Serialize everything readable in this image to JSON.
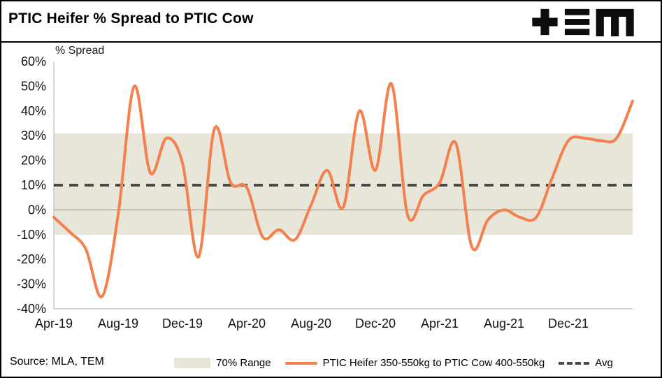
{
  "header": {
    "title": "PTIC Heifer % Spread to PTIC Cow",
    "logo": "TEM"
  },
  "chart_data": {
    "type": "line",
    "title": "PTIC Heifer % Spread to PTIC Cow",
    "ylabel": "% Spread",
    "ylim": [
      -40,
      60
    ],
    "ytick_step": 10,
    "ytick_suffix": "%",
    "legend_position": "bottom",
    "grid": "zero line only",
    "x_tick_labels": [
      "Apr-19",
      "Aug-19",
      "Dec-19",
      "Apr-20",
      "Aug-20",
      "Dec-20",
      "Apr-21",
      "Aug-21",
      "Dec-21"
    ],
    "x_tick_interval": 4,
    "band": {
      "name": "70% Range",
      "from": -10,
      "to": 31,
      "color": "#e8e6d9"
    },
    "avg": {
      "name": "Avg",
      "value": 10,
      "color": "#4a4a4a"
    },
    "series": [
      {
        "name": "PTIC Heifer 350-550kg to PTIC Cow 400-550kg",
        "color": "#f3804e",
        "x": [
          "Apr-19",
          "May-19",
          "Jun-19",
          "Jul-19",
          "Aug-19",
          "Sep-19",
          "Oct-19",
          "Nov-19",
          "Dec-19",
          "Jan-20",
          "Feb-20",
          "Mar-20",
          "Apr-20",
          "May-20",
          "Jun-20",
          "Jul-20",
          "Aug-20",
          "Sep-20",
          "Oct-20",
          "Nov-20",
          "Dec-20",
          "Jan-21",
          "Feb-21",
          "Mar-21",
          "Apr-21",
          "May-21",
          "Jun-21",
          "Jul-21",
          "Aug-21",
          "Sep-21",
          "Oct-21",
          "Nov-21",
          "Dec-21",
          "Jan-22",
          "Feb-22",
          "Mar-22",
          "Apr-22"
        ],
        "values": [
          -3,
          -9,
          -16,
          -35,
          -2,
          50,
          15,
          29,
          19,
          -19,
          33,
          11,
          9,
          -11,
          -8,
          -12,
          2,
          16,
          1,
          40,
          16,
          51,
          -2,
          6,
          11,
          27,
          -15,
          -4,
          0,
          -3,
          -3,
          13,
          28,
          29,
          28,
          29,
          44
        ]
      }
    ]
  },
  "legend": {
    "items": [
      {
        "label": "70% Range",
        "swatch": "band"
      },
      {
        "label": "PTIC Heifer 350-550kg to PTIC Cow 400-550kg",
        "swatch": "line"
      },
      {
        "label": "Avg",
        "swatch": "dashed"
      }
    ]
  },
  "source": {
    "text": "Source: MLA, TEM"
  }
}
